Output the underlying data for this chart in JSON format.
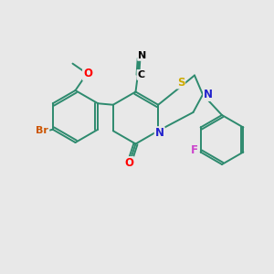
{
  "background_color": "#e8e8e8",
  "bond_color": "#2d8a6e",
  "atom_colors": {
    "Br": "#cc5500",
    "O": "#ff0000",
    "N": "#2222cc",
    "S": "#ccaa00",
    "C": "#000000",
    "F": "#cc44cc"
  },
  "figsize": [
    3.0,
    3.0
  ],
  "dpi": 100,
  "lw": 1.4
}
